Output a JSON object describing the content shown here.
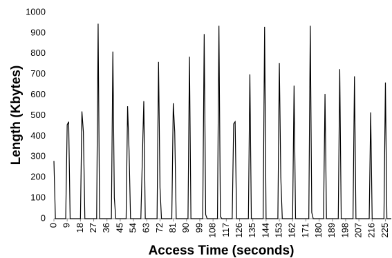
{
  "chart_data": {
    "type": "line",
    "x_label": "Access Time (seconds)",
    "y_label": "Length (Kbytes)",
    "color": "#000000",
    "x": [
      0,
      1,
      8,
      9,
      10,
      11,
      18,
      19,
      20,
      21,
      29,
      30,
      31,
      39,
      40,
      41,
      42,
      49,
      50,
      51,
      52,
      59,
      61,
      62,
      70,
      71,
      72,
      73,
      80,
      81,
      82,
      83,
      91,
      92,
      93,
      101,
      102,
      103,
      104,
      111,
      112,
      113,
      114,
      121,
      122,
      123,
      124,
      132,
      133,
      134,
      142,
      143,
      144,
      152,
      153,
      154,
      155,
      162,
      163,
      164,
      173,
      174,
      175,
      176,
      183,
      184,
      185,
      193,
      194,
      195,
      203,
      204,
      205,
      214,
      215,
      216,
      224,
      225,
      226,
      229
    ],
    "values": [
      280,
      0,
      0,
      455,
      470,
      0,
      0,
      520,
      420,
      0,
      0,
      945,
      0,
      0,
      810,
      100,
      0,
      0,
      545,
      330,
      0,
      0,
      570,
      0,
      0,
      760,
      150,
      0,
      0,
      560,
      420,
      0,
      0,
      785,
      0,
      0,
      895,
      20,
      0,
      0,
      935,
      10,
      0,
      0,
      460,
      470,
      0,
      0,
      700,
      0,
      0,
      930,
      0,
      0,
      755,
      200,
      0,
      0,
      645,
      0,
      0,
      935,
      30,
      0,
      0,
      605,
      0,
      0,
      725,
      0,
      0,
      690,
      0,
      0,
      515,
      0,
      0,
      660,
      0,
      0
    ],
    "xlim": [
      0,
      229
    ],
    "ylim": [
      0,
      1000
    ],
    "xticks": [
      0,
      9,
      18,
      27,
      36,
      45,
      54,
      63,
      72,
      81,
      90,
      99,
      108,
      117,
      126,
      135,
      144,
      153,
      162,
      171,
      180,
      189,
      198,
      207,
      216,
      225
    ],
    "yticks": [
      0,
      100,
      200,
      300,
      400,
      500,
      600,
      700,
      800,
      900,
      1000
    ],
    "grid": false
  }
}
